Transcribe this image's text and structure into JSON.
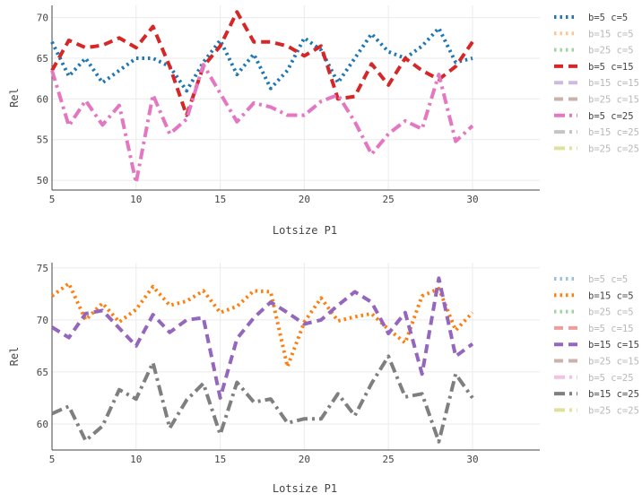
{
  "chart_data": [
    {
      "type": "line",
      "xlabel": "Lotsize P1",
      "ylabel": "Rel",
      "xlim": [
        5,
        34
      ],
      "ylim": [
        48.8,
        71.5
      ],
      "xticks": [
        5,
        10,
        15,
        20,
        25,
        30
      ],
      "yticks": [
        50,
        55,
        60,
        65,
        70
      ],
      "grid": true,
      "legend_position": "right",
      "x": [
        5,
        6,
        7,
        8,
        9,
        10,
        11,
        12,
        13,
        14,
        15,
        16,
        17,
        18,
        19,
        20,
        21,
        22,
        23,
        24,
        25,
        26,
        27,
        28,
        29,
        30
      ],
      "legend": [
        {
          "name": "b=5  c=5",
          "color": "#1f77b4",
          "dash": "dot",
          "active": true
        },
        {
          "name": "b=15  c=5",
          "color": "#ff7f0e",
          "dash": "dot",
          "active": false
        },
        {
          "name": "b=25  c=5",
          "color": "#2ca02c",
          "dash": "dot",
          "active": false
        },
        {
          "name": "b=5  c=15",
          "color": "#d62728",
          "dash": "dash",
          "active": true
        },
        {
          "name": "b=15  c=15",
          "color": "#9467bd",
          "dash": "dash",
          "active": false
        },
        {
          "name": "b=25  c=15",
          "color": "#8c564b",
          "dash": "dash",
          "active": false
        },
        {
          "name": "b=5  c=25",
          "color": "#e377c2",
          "dash": "dashdot",
          "active": true
        },
        {
          "name": "b=15  c=25",
          "color": "#7f7f7f",
          "dash": "dashdot",
          "active": false
        },
        {
          "name": "b=25  c=25",
          "color": "#bcbd22",
          "dash": "dashdot",
          "active": false
        }
      ],
      "series": [
        {
          "name": "b=5  c=5",
          "color": "#1f77b4",
          "dash": "dot",
          "values": [
            67.0,
            62.8,
            65.0,
            62.0,
            63.5,
            65.0,
            65.0,
            64.0,
            61.0,
            64.5,
            67.2,
            63.0,
            65.5,
            61.3,
            63.5,
            67.5,
            66.0,
            62.0,
            65.0,
            68.0,
            65.8,
            65.0,
            66.5,
            68.7,
            64.5,
            65.0
          ]
        },
        {
          "name": "b=5  c=15",
          "color": "#d62728",
          "dash": "dash",
          "values": [
            63.5,
            67.2,
            66.3,
            66.6,
            67.5,
            66.3,
            68.9,
            64.0,
            58.0,
            64.0,
            66.5,
            70.7,
            67.0,
            67.0,
            66.5,
            65.3,
            66.5,
            60.0,
            60.3,
            64.3,
            61.7,
            65.0,
            63.5,
            62.4,
            64.0,
            67.0
          ]
        },
        {
          "name": "b=5  c=25",
          "color": "#e377c2",
          "dash": "dashdot",
          "values": [
            63.5,
            56.7,
            59.8,
            56.8,
            59.2,
            49.7,
            60.5,
            55.7,
            57.5,
            64.2,
            60.7,
            57.2,
            59.5,
            59.0,
            58.0,
            58.0,
            59.7,
            60.5,
            57.2,
            53.2,
            55.7,
            57.3,
            56.3,
            63.0,
            54.8,
            56.7
          ]
        }
      ]
    },
    {
      "type": "line",
      "xlabel": "Lotsize P1",
      "ylabel": "Rel",
      "xlim": [
        5,
        34
      ],
      "ylim": [
        57.5,
        75.5
      ],
      "xticks": [
        5,
        10,
        15,
        20,
        25,
        30
      ],
      "yticks": [
        60,
        65,
        70,
        75
      ],
      "grid": true,
      "legend_position": "right",
      "x": [
        5,
        6,
        7,
        8,
        9,
        10,
        11,
        12,
        13,
        14,
        15,
        16,
        17,
        18,
        19,
        20,
        21,
        22,
        23,
        24,
        25,
        26,
        27,
        28,
        29,
        30
      ],
      "legend": [
        {
          "name": "b=5  c=5",
          "color": "#1f77b4",
          "dash": "dot",
          "active": false
        },
        {
          "name": "b=15  c=5",
          "color": "#ff7f0e",
          "dash": "dot",
          "active": true
        },
        {
          "name": "b=25  c=5",
          "color": "#2ca02c",
          "dash": "dot",
          "active": false
        },
        {
          "name": "b=5  c=15",
          "color": "#d62728",
          "dash": "dash",
          "active": false
        },
        {
          "name": "b=15  c=15",
          "color": "#9467bd",
          "dash": "dash",
          "active": true
        },
        {
          "name": "b=25  c=15",
          "color": "#8c564b",
          "dash": "dash",
          "active": false
        },
        {
          "name": "b=5  c=25",
          "color": "#e377c2",
          "dash": "dashdot",
          "active": false
        },
        {
          "name": "b=15  c=25",
          "color": "#7f7f7f",
          "dash": "dashdot",
          "active": true
        },
        {
          "name": "b=25  c=25",
          "color": "#bcbd22",
          "dash": "dashdot",
          "active": false
        }
      ],
      "series": [
        {
          "name": "b=15  c=5",
          "color": "#ff7f0e",
          "dash": "dot",
          "values": [
            72.3,
            73.5,
            70.0,
            71.6,
            69.8,
            71.0,
            73.2,
            71.4,
            71.8,
            72.8,
            70.7,
            71.3,
            72.8,
            72.7,
            65.5,
            69.8,
            72.1,
            69.9,
            70.3,
            70.6,
            69.1,
            67.8,
            72.3,
            73.0,
            69.0,
            70.7
          ]
        },
        {
          "name": "b=15  c=15",
          "color": "#9467bd",
          "dash": "dash",
          "values": [
            69.3,
            68.3,
            70.6,
            70.9,
            69.2,
            67.5,
            70.5,
            68.8,
            70.0,
            70.2,
            62.5,
            68.2,
            70.2,
            71.7,
            70.7,
            69.6,
            70.0,
            71.4,
            72.7,
            71.7,
            68.7,
            70.7,
            64.8,
            74.0,
            66.5,
            67.7
          ]
        },
        {
          "name": "b=15  c=25",
          "color": "#7f7f7f",
          "dash": "dashdot",
          "values": [
            61.0,
            61.7,
            58.4,
            59.8,
            63.3,
            62.4,
            65.9,
            59.6,
            62.3,
            63.9,
            59.0,
            64.0,
            62.1,
            62.4,
            60.1,
            60.5,
            60.5,
            62.9,
            60.8,
            63.9,
            66.5,
            62.6,
            62.9,
            58.3,
            64.8,
            62.5
          ]
        }
      ]
    }
  ]
}
